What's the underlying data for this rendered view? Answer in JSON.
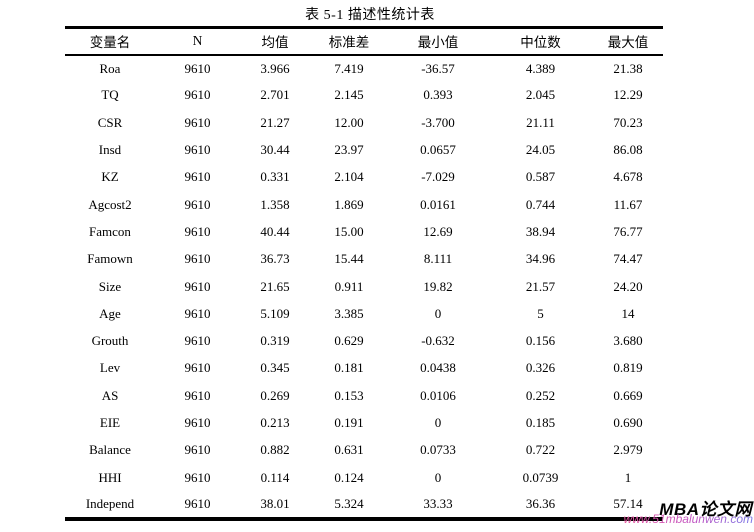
{
  "page": {
    "title": "表 5-1  描述性统计表"
  },
  "table": {
    "columns": [
      "变量名",
      "N",
      "均值",
      "标准差",
      "最小值",
      "中位数",
      "最大值"
    ],
    "rows": [
      [
        "Roa",
        "9610",
        "3.966",
        "7.419",
        "-36.57",
        "4.389",
        "21.38"
      ],
      [
        "TQ",
        "9610",
        "2.701",
        "2.145",
        "0.393",
        "2.045",
        "12.29"
      ],
      [
        "CSR",
        "9610",
        "21.27",
        "12.00",
        "-3.700",
        "21.11",
        "70.23"
      ],
      [
        "Insd",
        "9610",
        "30.44",
        "23.97",
        "0.0657",
        "24.05",
        "86.08"
      ],
      [
        "KZ",
        "9610",
        "0.331",
        "2.104",
        "-7.029",
        "0.587",
        "4.678"
      ],
      [
        "Agcost2",
        "9610",
        "1.358",
        "1.869",
        "0.0161",
        "0.744",
        "11.67"
      ],
      [
        "Famcon",
        "9610",
        "40.44",
        "15.00",
        "12.69",
        "38.94",
        "76.77"
      ],
      [
        "Famown",
        "9610",
        "36.73",
        "15.44",
        "8.111",
        "34.96",
        "74.47"
      ],
      [
        "Size",
        "9610",
        "21.65",
        "0.911",
        "19.82",
        "21.57",
        "24.20"
      ],
      [
        "Age",
        "9610",
        "5.109",
        "3.385",
        "0",
        "5",
        "14"
      ],
      [
        "Grouth",
        "9610",
        "0.319",
        "0.629",
        "-0.632",
        "0.156",
        "3.680"
      ],
      [
        "Lev",
        "9610",
        "0.345",
        "0.181",
        "0.0438",
        "0.326",
        "0.819"
      ],
      [
        "AS",
        "9610",
        "0.269",
        "0.153",
        "0.0106",
        "0.252",
        "0.669"
      ],
      [
        "EIE",
        "9610",
        "0.213",
        "0.191",
        "0",
        "0.185",
        "0.690"
      ],
      [
        "Balance",
        "9610",
        "0.882",
        "0.631",
        "0.0733",
        "0.722",
        "2.979"
      ],
      [
        "HHI",
        "9610",
        "0.114",
        "0.124",
        "0",
        "0.0739",
        "1"
      ],
      [
        "Independ",
        "9610",
        "38.01",
        "5.324",
        "33.33",
        "36.36",
        "57.14"
      ]
    ]
  },
  "chart_data": {
    "type": "table",
    "title": "表 5-1  描述性统计表",
    "columns": [
      "变量名",
      "N",
      "均值",
      "标准差",
      "最小值",
      "中位数",
      "最大值"
    ],
    "n_rows": 17
  },
  "watermark": {
    "brand": "MBA论文网",
    "url": "www.51mbalunwen.com",
    "brand_color": "#000000",
    "url_color_start": "#e8559f",
    "url_color_end": "#7b79e8"
  },
  "colors": {
    "background": "#ffffff",
    "text": "#000000",
    "rule": "#000000"
  }
}
